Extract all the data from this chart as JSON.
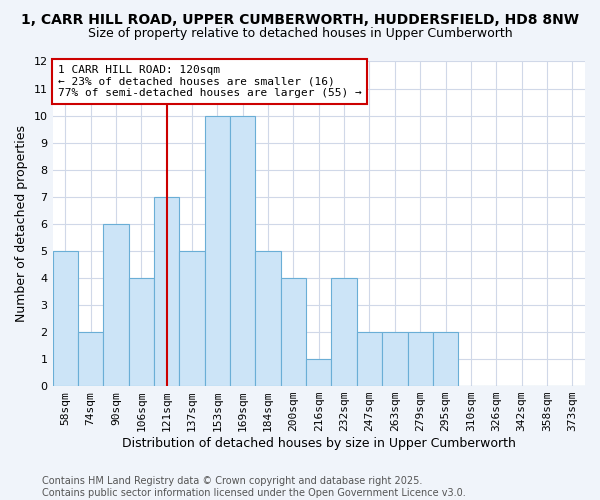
{
  "title1": "1, CARR HILL ROAD, UPPER CUMBERWORTH, HUDDERSFIELD, HD8 8NW",
  "title2": "Size of property relative to detached houses in Upper Cumberworth",
  "xlabel": "Distribution of detached houses by size in Upper Cumberworth",
  "ylabel": "Number of detached properties",
  "categories": [
    "58sqm",
    "74sqm",
    "90sqm",
    "106sqm",
    "121sqm",
    "137sqm",
    "153sqm",
    "169sqm",
    "184sqm",
    "200sqm",
    "216sqm",
    "232sqm",
    "247sqm",
    "263sqm",
    "279sqm",
    "295sqm",
    "310sqm",
    "326sqm",
    "342sqm",
    "358sqm",
    "373sqm"
  ],
  "values": [
    5,
    2,
    6,
    4,
    7,
    5,
    10,
    10,
    5,
    4,
    1,
    4,
    2,
    2,
    2,
    2,
    0,
    0,
    0,
    0,
    0
  ],
  "bar_color": "#cce4f7",
  "bar_edge_color": "#6aaed6",
  "highlight_index": 4,
  "red_line_color": "#cc0000",
  "annotation_line1": "1 CARR HILL ROAD: 120sqm",
  "annotation_line2": "← 23% of detached houses are smaller (16)",
  "annotation_line3": "77% of semi-detached houses are larger (55) →",
  "annotation_box_color": "#ffffff",
  "annotation_box_edge": "#cc0000",
  "ylim": [
    0,
    12
  ],
  "yticks": [
    0,
    1,
    2,
    3,
    4,
    5,
    6,
    7,
    8,
    9,
    10,
    11,
    12
  ],
  "bg_color": "#f0f4fa",
  "plot_bg_color": "#ffffff",
  "grid_color": "#d0d8e8",
  "footer_text": "Contains HM Land Registry data © Crown copyright and database right 2025.\nContains public sector information licensed under the Open Government Licence v3.0.",
  "title1_fontsize": 10,
  "title2_fontsize": 9,
  "xlabel_fontsize": 9,
  "ylabel_fontsize": 9,
  "tick_fontsize": 8,
  "footer_fontsize": 7,
  "annot_fontsize": 8
}
